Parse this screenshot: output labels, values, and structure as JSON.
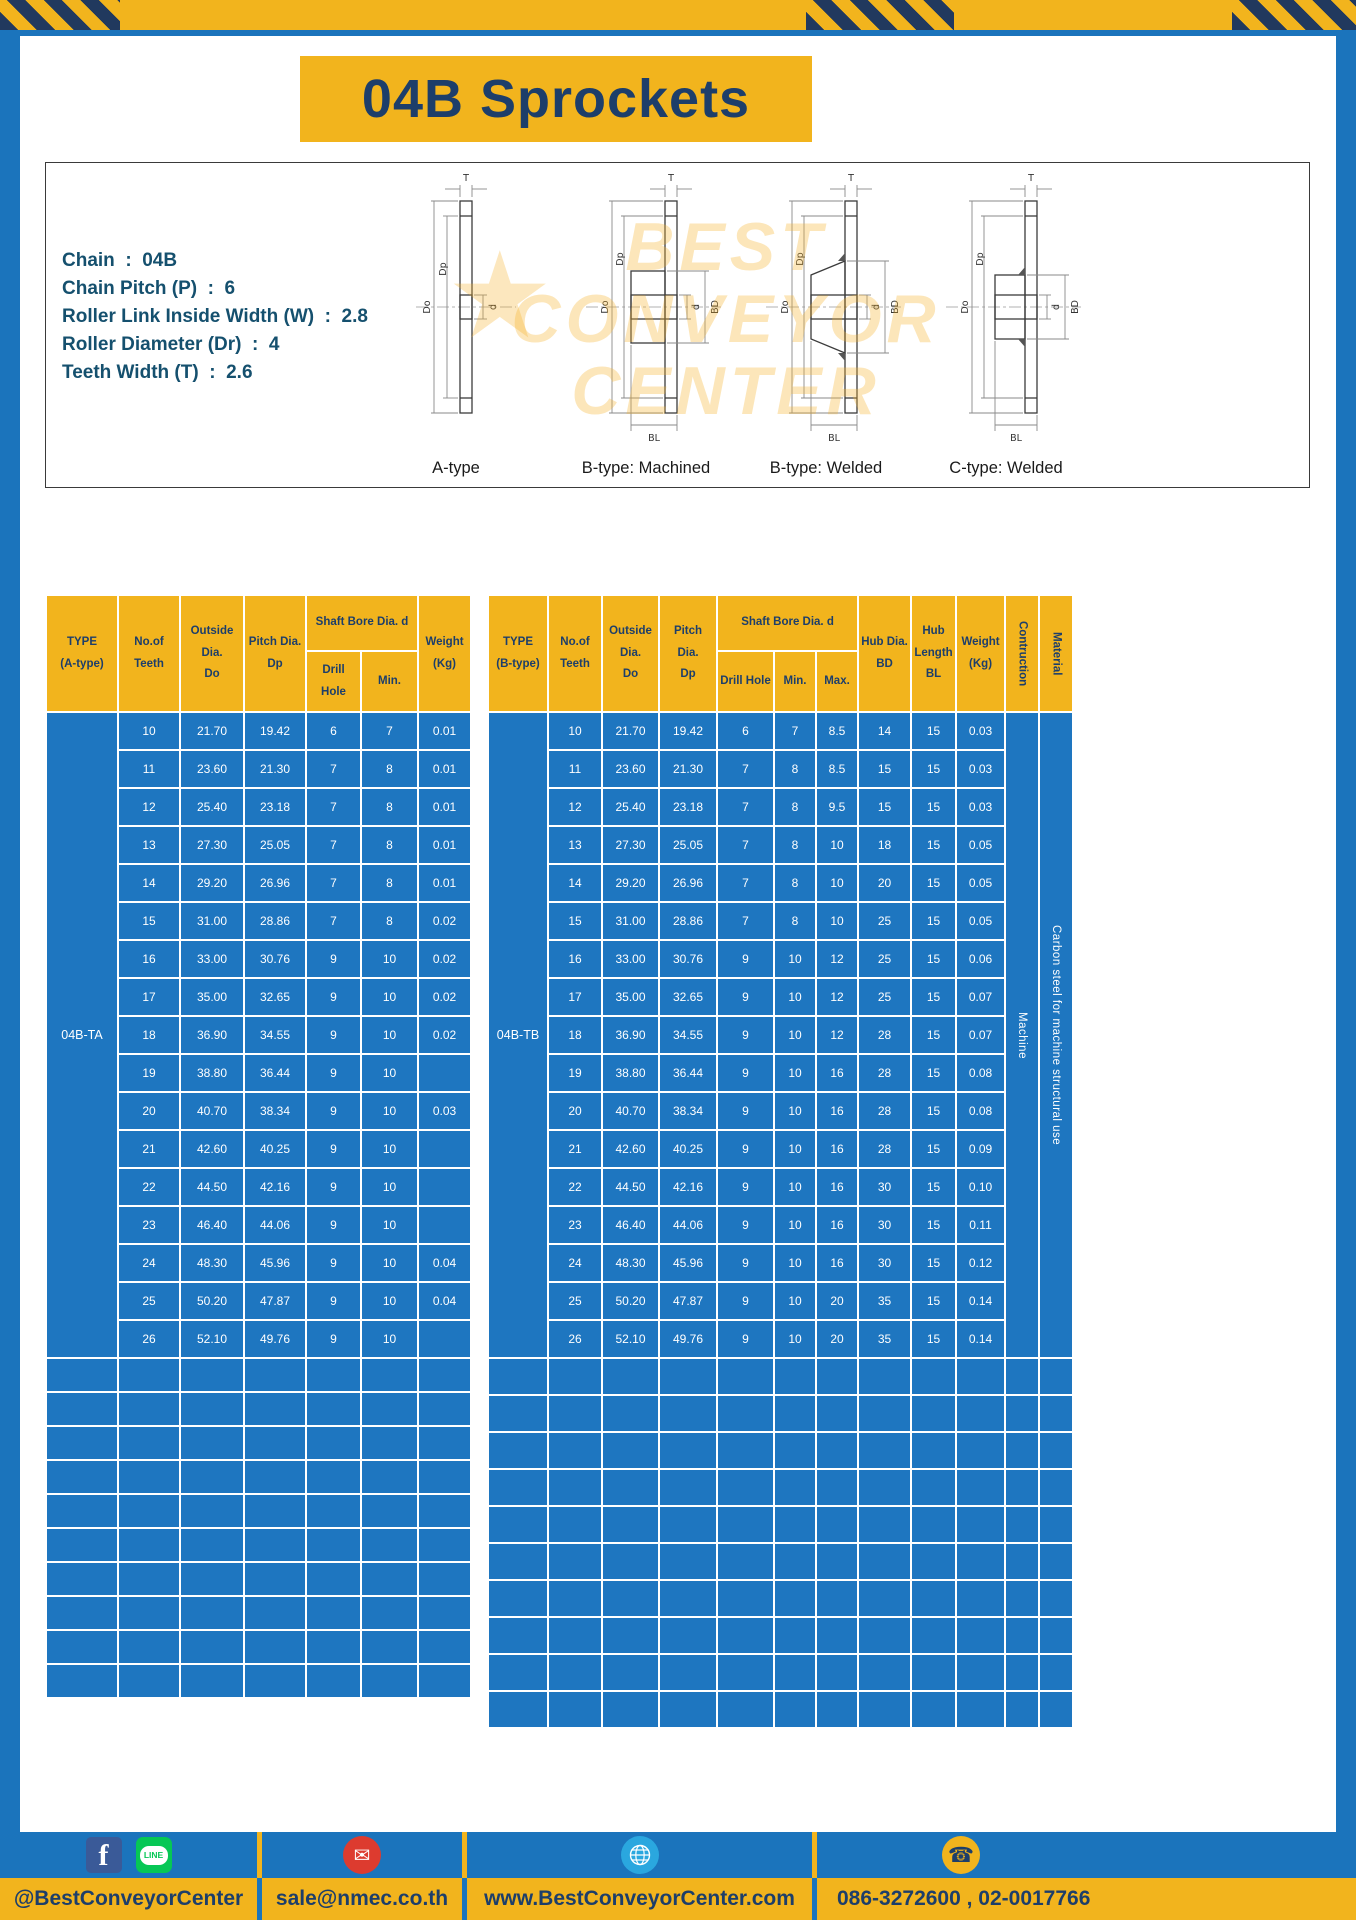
{
  "title": "04B Sprockets",
  "specs": [
    "Chain  :  04B",
    "Chain Pitch (P)  :  6",
    "Roller Link Inside Width (W)  :  2.8",
    "Roller Diameter (Dr)  :  4",
    "Teeth Width (T)  :  2.6"
  ],
  "diagram": {
    "captions": [
      "A-type",
      "B-type: Machined",
      "B-type: Welded",
      "C-type: Welded"
    ],
    "dims": {
      "t": "T",
      "do": "Do",
      "dp": "Dp",
      "d": "d",
      "bd": "BD",
      "bl": "BL"
    },
    "watermark_lines": [
      "BEST",
      "CONVEYOR",
      "CENTER"
    ],
    "watermark_star": "★"
  },
  "table_a": {
    "headers": {
      "type": "TYPE\n(A-type)",
      "teeth": "No.of\nTeeth",
      "outside": "Outside\nDia.\nDo",
      "pitch": "Pitch Dia.\nDp",
      "shaft_bore": "Shaft Bore Dia. d",
      "drill": "Drill Hole",
      "min": "Min.",
      "weight": "Weight\n(Kg)"
    },
    "type_label": "04B-TA",
    "rows": [
      [
        "10",
        "21.70",
        "19.42",
        "6",
        "7",
        "0.01"
      ],
      [
        "11",
        "23.60",
        "21.30",
        "7",
        "8",
        "0.01"
      ],
      [
        "12",
        "25.40",
        "23.18",
        "7",
        "8",
        "0.01"
      ],
      [
        "13",
        "27.30",
        "25.05",
        "7",
        "8",
        "0.01"
      ],
      [
        "14",
        "29.20",
        "26.96",
        "7",
        "8",
        "0.01"
      ],
      [
        "15",
        "31.00",
        "28.86",
        "7",
        "8",
        "0.02"
      ],
      [
        "16",
        "33.00",
        "30.76",
        "9",
        "10",
        "0.02"
      ],
      [
        "17",
        "35.00",
        "32.65",
        "9",
        "10",
        "0.02"
      ],
      [
        "18",
        "36.90",
        "34.55",
        "9",
        "10",
        "0.02"
      ],
      [
        "19",
        "38.80",
        "36.44",
        "9",
        "10",
        ""
      ],
      [
        "20",
        "40.70",
        "38.34",
        "9",
        "10",
        "0.03"
      ],
      [
        "21",
        "42.60",
        "40.25",
        "9",
        "10",
        ""
      ],
      [
        "22",
        "44.50",
        "42.16",
        "9",
        "10",
        ""
      ],
      [
        "23",
        "46.40",
        "44.06",
        "9",
        "10",
        ""
      ],
      [
        "24",
        "48.30",
        "45.96",
        "9",
        "10",
        "0.04"
      ],
      [
        "25",
        "50.20",
        "47.87",
        "9",
        "10",
        "0.04"
      ],
      [
        "26",
        "52.10",
        "49.76",
        "9",
        "10",
        ""
      ]
    ],
    "empty_rows": 10
  },
  "table_b": {
    "headers": {
      "type": "TYPE\n(B-type)",
      "teeth": "No.of\nTeeth",
      "outside": "Outside\nDia.\nDo",
      "pitch": "Pitch Dia.\nDp",
      "shaft_bore": "Shaft Bore Dia. d",
      "drill": "Drill Hole",
      "min": "Min.",
      "max": "Max.",
      "hub_dia": "Hub Dia.\nBD",
      "hub_len": "Hub\nLength\nBL",
      "weight": "Weight\n(Kg)",
      "construction": "Contruction",
      "material": "Material"
    },
    "type_label": "04B-TB",
    "construction_value": "Machine",
    "material_value": "Carbon steel for machine structural use",
    "rows": [
      [
        "10",
        "21.70",
        "19.42",
        "6",
        "7",
        "8.5",
        "14",
        "15",
        "0.03"
      ],
      [
        "11",
        "23.60",
        "21.30",
        "7",
        "8",
        "8.5",
        "15",
        "15",
        "0.03"
      ],
      [
        "12",
        "25.40",
        "23.18",
        "7",
        "8",
        "9.5",
        "15",
        "15",
        "0.03"
      ],
      [
        "13",
        "27.30",
        "25.05",
        "7",
        "8",
        "10",
        "18",
        "15",
        "0.05"
      ],
      [
        "14",
        "29.20",
        "26.96",
        "7",
        "8",
        "10",
        "20",
        "15",
        "0.05"
      ],
      [
        "15",
        "31.00",
        "28.86",
        "7",
        "8",
        "10",
        "25",
        "15",
        "0.05"
      ],
      [
        "16",
        "33.00",
        "30.76",
        "9",
        "10",
        "12",
        "25",
        "15",
        "0.06"
      ],
      [
        "17",
        "35.00",
        "32.65",
        "9",
        "10",
        "12",
        "25",
        "15",
        "0.07"
      ],
      [
        "18",
        "36.90",
        "34.55",
        "9",
        "10",
        "12",
        "28",
        "15",
        "0.07"
      ],
      [
        "19",
        "38.80",
        "36.44",
        "9",
        "10",
        "16",
        "28",
        "15",
        "0.08"
      ],
      [
        "20",
        "40.70",
        "38.34",
        "9",
        "10",
        "16",
        "28",
        "15",
        "0.08"
      ],
      [
        "21",
        "42.60",
        "40.25",
        "9",
        "10",
        "16",
        "28",
        "15",
        "0.09"
      ],
      [
        "22",
        "44.50",
        "42.16",
        "9",
        "10",
        "16",
        "30",
        "15",
        "0.10"
      ],
      [
        "23",
        "46.40",
        "44.06",
        "9",
        "10",
        "16",
        "30",
        "15",
        "0.11"
      ],
      [
        "24",
        "48.30",
        "45.96",
        "9",
        "10",
        "16",
        "30",
        "15",
        "0.12"
      ],
      [
        "25",
        "50.20",
        "47.87",
        "9",
        "10",
        "20",
        "35",
        "15",
        "0.14"
      ],
      [
        "26",
        "52.10",
        "49.76",
        "9",
        "10",
        "20",
        "35",
        "15",
        "0.14"
      ]
    ],
    "empty_rows": 10
  },
  "footer": {
    "social_label": "@BestConveyorCenter",
    "email": "sale@nmec.co.th",
    "website": "www.BestConveyorCenter.com",
    "phone": "086-3272600 , 02-0017766",
    "icons": {
      "fb": "f",
      "line": "LINE",
      "email_glyph": "✉",
      "phone_glyph": "☎"
    }
  }
}
